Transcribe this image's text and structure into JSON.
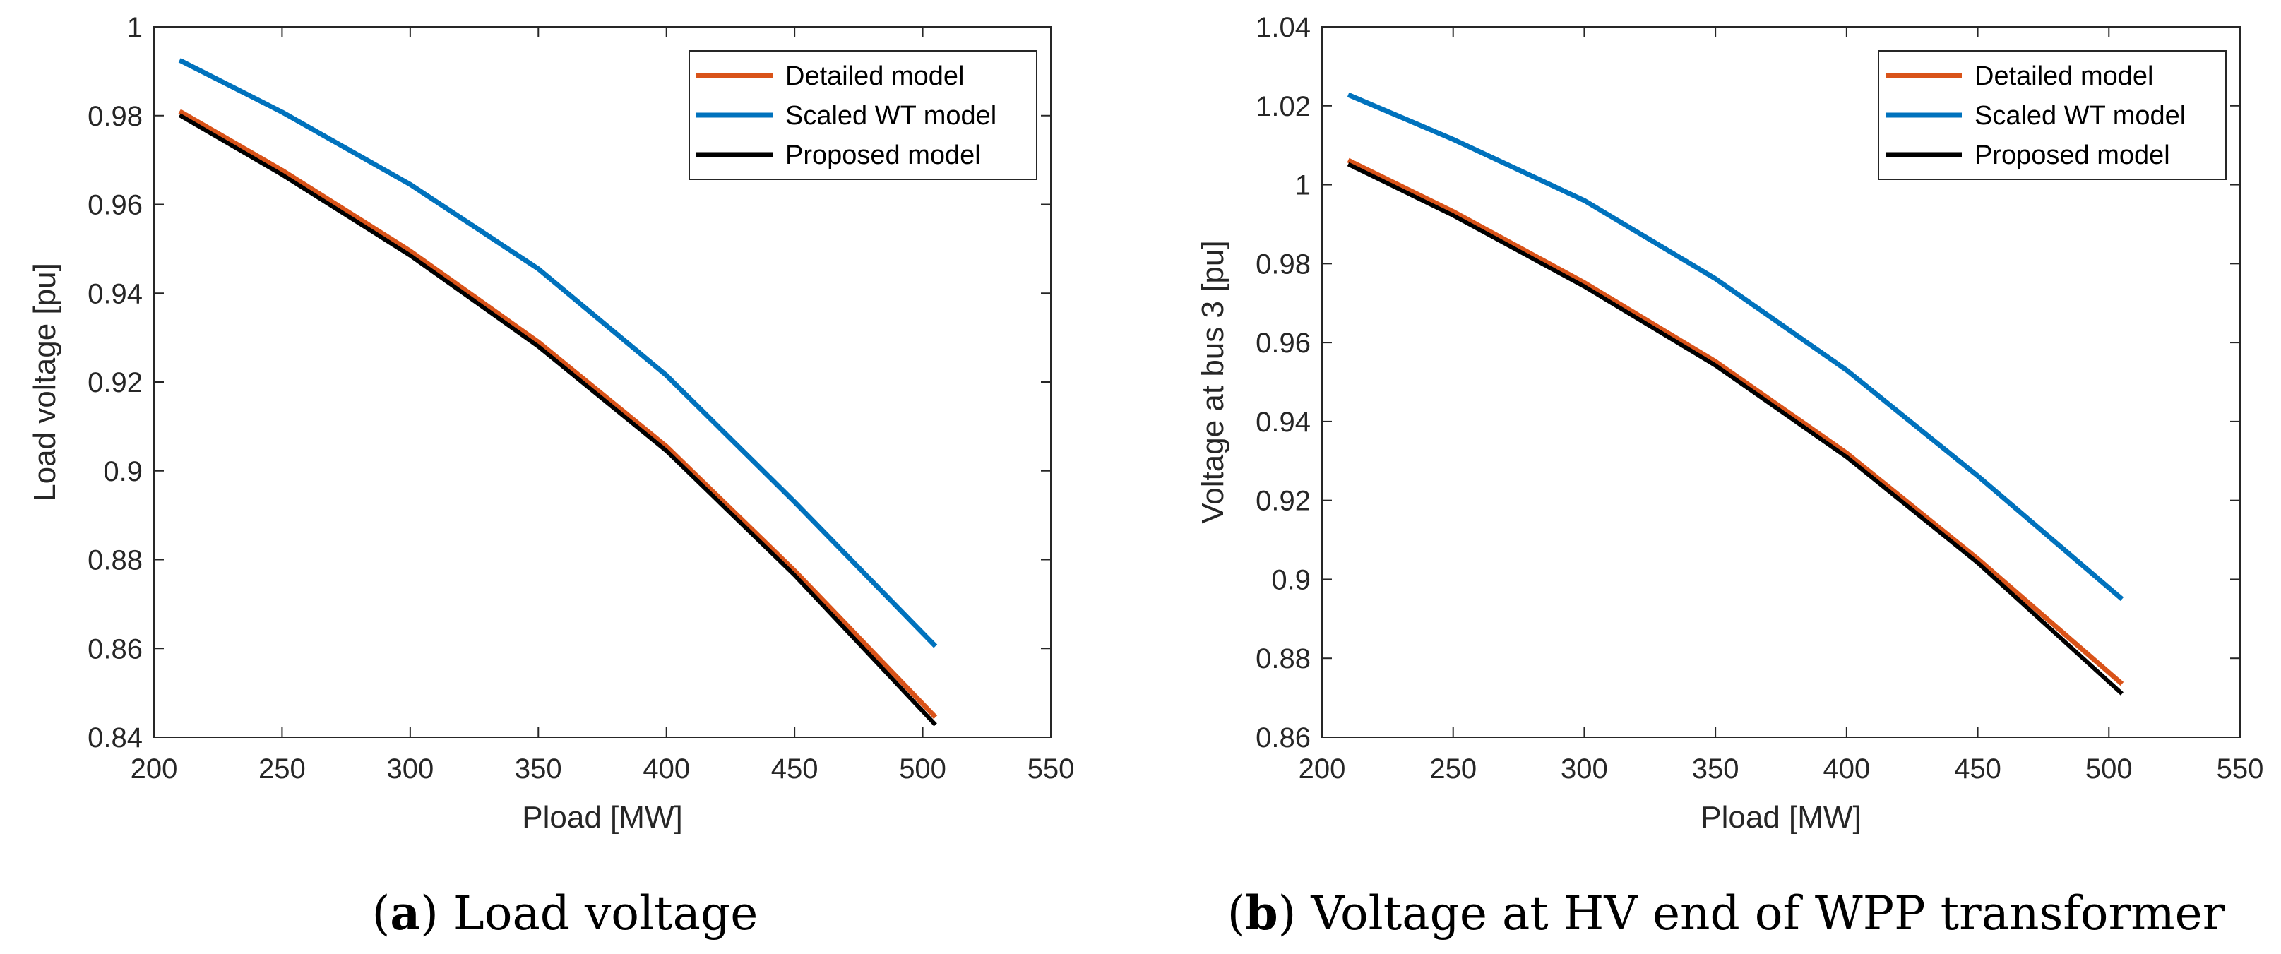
{
  "chart_data": [
    {
      "type": "line",
      "panel": "a",
      "caption_letter": "a",
      "caption_text": "Load voltage",
      "xlabel": "Pload [MW]",
      "ylabel": "Load voltage [pu]",
      "xlim": [
        200,
        550
      ],
      "ylim": [
        0.84,
        1.0
      ],
      "xticks": [
        200,
        250,
        300,
        350,
        400,
        450,
        500,
        550
      ],
      "xtick_labels": [
        "200",
        "250",
        "300",
        "350",
        "400",
        "450",
        "500",
        "550"
      ],
      "yticks": [
        0.84,
        0.86,
        0.88,
        0.9,
        0.92,
        0.94,
        0.96,
        0.98,
        1.0
      ],
      "ytick_labels": [
        "0.84",
        "0.86",
        "0.88",
        "0.9",
        "0.92",
        "0.94",
        "0.96",
        "0.98",
        "1"
      ],
      "legend_position": "top-right",
      "grid": false,
      "series": [
        {
          "name": "Detailed model",
          "color": "#D95319",
          "x": [
            210,
            250,
            300,
            350,
            400,
            450,
            505
          ],
          "y": [
            0.981,
            0.9677,
            0.9495,
            0.929,
            0.9055,
            0.8775,
            0.8445
          ]
        },
        {
          "name": "Scaled WT model",
          "color": "#0072BD",
          "x": [
            210,
            250,
            300,
            350,
            400,
            450,
            505
          ],
          "y": [
            0.9925,
            0.9808,
            0.9645,
            0.9455,
            0.9215,
            0.893,
            0.8605
          ]
        },
        {
          "name": "Proposed model",
          "color": "#000000",
          "x": [
            210,
            250,
            300,
            350,
            400,
            450,
            505
          ],
          "y": [
            0.9801,
            0.9667,
            0.9485,
            0.928,
            0.9045,
            0.8765,
            0.8428
          ]
        }
      ]
    },
    {
      "type": "line",
      "panel": "b",
      "caption_letter": "b",
      "caption_text": "Voltage at HV end of WPP transformer",
      "xlabel": "Pload [MW]",
      "ylabel": "Voltage at bus 3 [pu]",
      "xlim": [
        200,
        550
      ],
      "ylim": [
        0.86,
        1.04
      ],
      "xticks": [
        200,
        250,
        300,
        350,
        400,
        450,
        500,
        550
      ],
      "xtick_labels": [
        "200",
        "250",
        "300",
        "350",
        "400",
        "450",
        "500",
        "550"
      ],
      "yticks": [
        0.86,
        0.88,
        0.9,
        0.92,
        0.94,
        0.96,
        0.98,
        1.0,
        1.02,
        1.04
      ],
      "ytick_labels": [
        "0.86",
        "0.88",
        "0.9",
        "0.92",
        "0.94",
        "0.96",
        "0.98",
        "1",
        "1.02",
        "1.04"
      ],
      "legend_position": "top-right",
      "grid": false,
      "series": [
        {
          "name": "Detailed model",
          "color": "#D95319",
          "x": [
            210,
            250,
            300,
            350,
            400,
            450,
            505
          ],
          "y": [
            1.0062,
            0.9932,
            0.9752,
            0.9552,
            0.932,
            0.9052,
            0.8735
          ]
        },
        {
          "name": "Scaled WT model",
          "color": "#0072BD",
          "x": [
            210,
            250,
            300,
            350,
            400,
            450,
            505
          ],
          "y": [
            1.0228,
            1.0115,
            0.996,
            0.9762,
            0.953,
            0.9262,
            0.895
          ]
        },
        {
          "name": "Proposed model",
          "color": "#000000",
          "x": [
            210,
            250,
            300,
            350,
            400,
            450,
            505
          ],
          "y": [
            1.0052,
            0.9922,
            0.9742,
            0.9542,
            0.931,
            0.9042,
            0.871
          ]
        }
      ]
    }
  ]
}
